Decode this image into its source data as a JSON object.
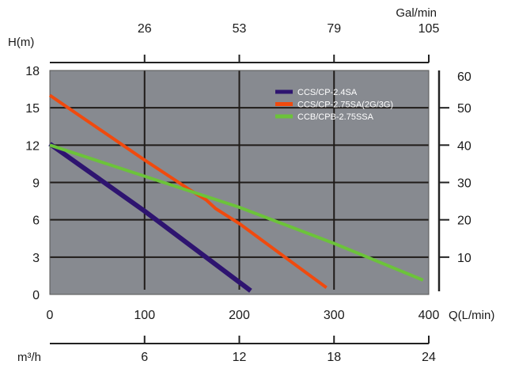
{
  "chart_data": {
    "type": "line",
    "title": "",
    "xlabel": "Q(L/min)",
    "ylabel": "H(m)",
    "xlim": [
      0,
      400
    ],
    "ylim": [
      0,
      18
    ],
    "grid": true,
    "legend_position": "top-right",
    "background_color": "#878a90",
    "x_ticks": [
      "0",
      "100",
      "200",
      "300",
      "400"
    ],
    "y_ticks": [
      "0",
      "3",
      "6",
      "9",
      "12",
      "15",
      "18"
    ],
    "top_axis": {
      "label": "Gal/min",
      "ticks": [
        {
          "x": 100,
          "label": "26"
        },
        {
          "x": 200,
          "label": "53"
        },
        {
          "x": 300,
          "label": "79"
        },
        {
          "x": 400,
          "label": "105"
        }
      ]
    },
    "bottom_axis": {
      "label": "m³/h",
      "ticks": [
        {
          "x": 100,
          "label": "6"
        },
        {
          "x": 200,
          "label": "12"
        },
        {
          "x": 300,
          "label": "18"
        },
        {
          "x": 400,
          "label": "24"
        }
      ]
    },
    "right_axis": {
      "ticks": [
        {
          "h": 3,
          "label": "10"
        },
        {
          "h": 6,
          "label": "20"
        },
        {
          "h": 9,
          "label": "30"
        },
        {
          "h": 12,
          "label": "40"
        },
        {
          "h": 15,
          "label": "50"
        },
        {
          "h": 18,
          "label": "60"
        }
      ]
    },
    "series": [
      {
        "name": "CCS/CP-2.4SA",
        "color": "#2e1470",
        "points": [
          [
            0,
            12.1
          ],
          [
            100,
            6.7
          ],
          [
            212,
            0.3
          ]
        ]
      },
      {
        "name": "CCS/CP-2.75SA(2G/3G)",
        "color": "#f04a0e",
        "points": [
          [
            0,
            16.0
          ],
          [
            100,
            10.8
          ],
          [
            150,
            8.3
          ],
          [
            165,
            7.6
          ],
          [
            175,
            6.9
          ],
          [
            200,
            5.7
          ],
          [
            292,
            0.55
          ]
        ]
      },
      {
        "name": "CCB/CPB-2.75SSA",
        "color": "#6cc33a",
        "points": [
          [
            0,
            12.0
          ],
          [
            100,
            9.5
          ],
          [
            200,
            7.0
          ],
          [
            300,
            4.1
          ],
          [
            394,
            1.15
          ]
        ]
      }
    ]
  }
}
